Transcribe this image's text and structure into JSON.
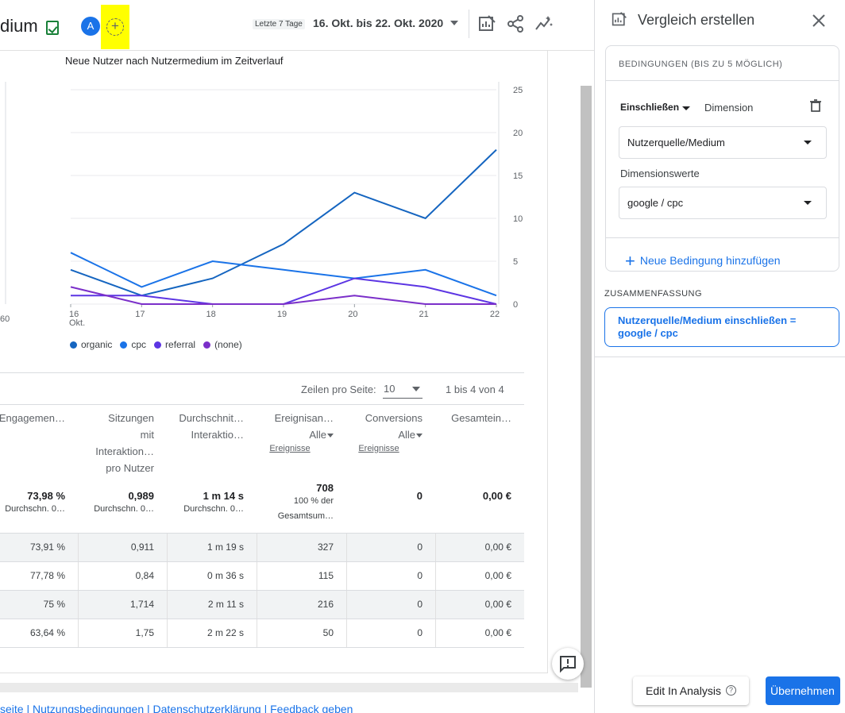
{
  "header": {
    "title": "dium",
    "avatar_letter": "A",
    "add_icon": "plus",
    "date_chip": "Letzte 7 Tage",
    "date_range": "16. Okt. bis 22. Okt. 2020"
  },
  "chart": {
    "title": "Neue Nutzer nach Nutzermedium im Zeitverlauf",
    "left_axis_tick": "60",
    "x_labels": [
      "16",
      "17",
      "18",
      "19",
      "20",
      "21",
      "22"
    ],
    "x_sublabel": "Okt.",
    "y_labels": [
      "25",
      "20",
      "15",
      "10",
      "5",
      "0"
    ],
    "legend": [
      {
        "label": "organic",
        "color": "#1565c0"
      },
      {
        "label": "cpc",
        "color": "#1a73e8"
      },
      {
        "label": "referral",
        "color": "#5c35e3"
      },
      {
        "label": "(none)",
        "color": "#7b2fc9"
      }
    ]
  },
  "chart_data": {
    "type": "line",
    "title": "Neue Nutzer nach Nutzermedium im Zeitverlauf",
    "x": [
      "16",
      "17",
      "18",
      "19",
      "20",
      "21",
      "22"
    ],
    "ylim": [
      0,
      25
    ],
    "series": [
      {
        "name": "organic",
        "values": [
          4,
          1,
          3,
          7,
          13,
          10,
          18
        ],
        "color": "#1565c0"
      },
      {
        "name": "cpc",
        "values": [
          6,
          2,
          5,
          4,
          3,
          4,
          1
        ],
        "color": "#1a73e8"
      },
      {
        "name": "referral",
        "values": [
          1,
          1,
          0,
          0,
          3,
          2,
          0
        ],
        "color": "#5c35e3"
      },
      {
        "name": "(none)",
        "values": [
          2,
          0,
          0,
          0,
          1,
          0,
          0
        ],
        "color": "#7b2fc9"
      }
    ]
  },
  "table": {
    "rows_label": "Zeilen pro Seite:",
    "rows_value": "10",
    "range_text": "1 bis 4 von 4",
    "columns": [
      {
        "lines": [
          "Engagemen…"
        ]
      },
      {
        "lines": [
          "Sitzungen",
          "mit",
          "Interaktion…",
          "pro Nutzer"
        ]
      },
      {
        "lines": [
          "Durchschnit…",
          "Interaktio…"
        ]
      },
      {
        "lines": [
          "Ereignisan…",
          "Alle"
        ],
        "sub": "Ereignisse"
      },
      {
        "lines": [
          "Conversions",
          "Alle"
        ],
        "sub": "Ereignisse"
      },
      {
        "lines": [
          "Gesamtein…"
        ]
      }
    ],
    "totals": [
      {
        "value": "73,98 %",
        "sub": [
          "Durchschn. 0…"
        ]
      },
      {
        "value": "0,989",
        "sub": [
          "Durchschn. 0…"
        ]
      },
      {
        "value": "1 m 14 s",
        "sub": [
          "Durchschn. 0…"
        ]
      },
      {
        "value": "708",
        "sub": [
          "100 % der",
          "Gesamtsum…"
        ]
      },
      {
        "value": "0",
        "sub": []
      },
      {
        "value": "0,00 €",
        "sub": []
      }
    ],
    "rows": [
      [
        "73,91 %",
        "0,911",
        "1 m 19 s",
        "327",
        "0",
        "0,00 €"
      ],
      [
        "77,78 %",
        "0,84",
        "0 m 36 s",
        "115",
        "0",
        "0,00 €"
      ],
      [
        "75 %",
        "1,714",
        "2 m 11 s",
        "216",
        "0",
        "0,00 €"
      ],
      [
        "63,64 %",
        "1,75",
        "2 m 22 s",
        "50",
        "0",
        "0,00 €"
      ]
    ]
  },
  "footer": {
    "links_text": "seite | Nutzungsbedingungen | Datenschutzerklärung | Feedback geben"
  },
  "panel": {
    "title": "Vergleich erstellen",
    "conditions_header": "BEDINGUNGEN (BIS ZU 5 MÖGLICH)",
    "include_label": "Einschließen",
    "dimension_label": "Dimension",
    "dimension_value": "Nutzerquelle/Medium",
    "dimension_values_label": "Dimensionswerte",
    "dimension_values_value": "google / cpc",
    "add_condition": "Neue Bedingung hinzufügen",
    "summary_label": "ZUSAMMENFASSUNG",
    "summary_line1": "Nutzerquelle/Medium einschließen =",
    "summary_line2": "google / cpc",
    "edit_in_analysis": "Edit In Analysis",
    "apply": "Übernehmen"
  }
}
